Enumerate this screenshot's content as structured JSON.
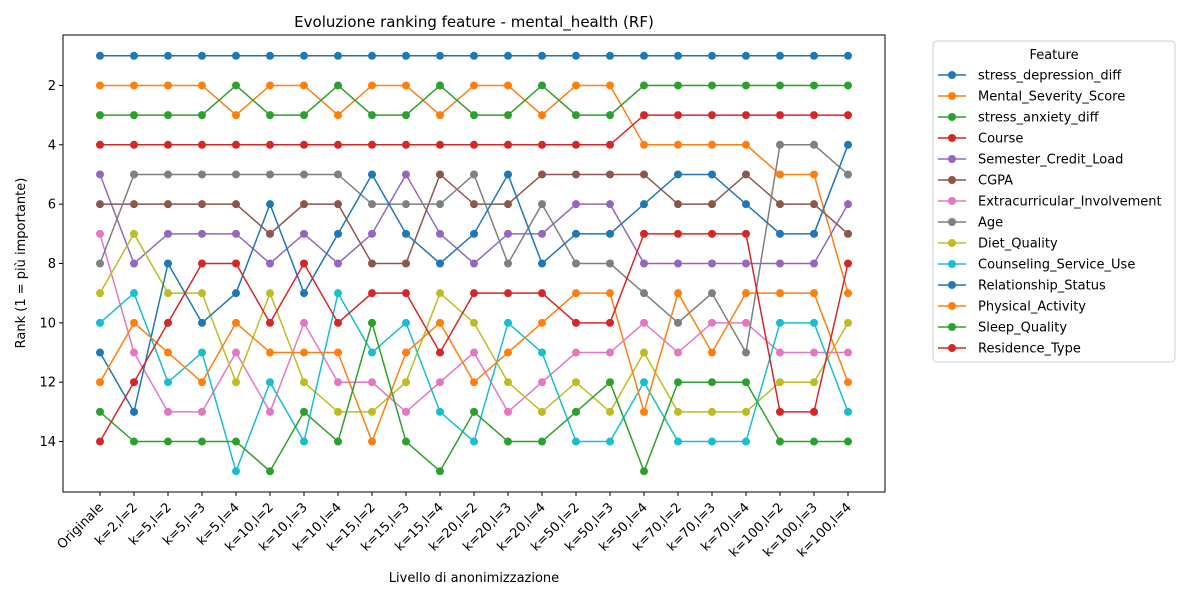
{
  "chart_data": {
    "type": "line",
    "title": "Evoluzione ranking feature - mental_health (RF)",
    "xlabel": "Livello di anonimizzazione",
    "ylabel": "Rank (1 = più importante)",
    "ylim": [
      15.7,
      0.3
    ],
    "y_inverted": true,
    "y_ticks": [
      2,
      4,
      6,
      8,
      10,
      12,
      14
    ],
    "grid": false,
    "legend_title": "Feature",
    "legend_position": "outside-right",
    "categories": [
      "Originale",
      "k=2,l=2",
      "k=5,l=2",
      "k=5,l=3",
      "k=5,l=4",
      "k=10,l=2",
      "k=10,l=3",
      "k=10,l=4",
      "k=15,l=2",
      "k=15,l=3",
      "k=15,l=4",
      "k=20,l=2",
      "k=20,l=3",
      "k=20,l=4",
      "k=50,l=2",
      "k=50,l=3",
      "k=50,l=4",
      "k=70,l=2",
      "k=70,l=3",
      "k=70,l=4",
      "k=100,l=2",
      "k=100,l=3",
      "k=100,l=4"
    ],
    "series": [
      {
        "name": "stress_depression_diff",
        "color": "#1f77b4",
        "values": [
          1,
          1,
          1,
          1,
          1,
          1,
          1,
          1,
          1,
          1,
          1,
          1,
          1,
          1,
          1,
          1,
          1,
          1,
          1,
          1,
          1,
          1,
          1
        ]
      },
      {
        "name": "Mental_Severity_Score",
        "color": "#ff7f0e",
        "values": [
          2,
          2,
          2,
          2,
          3,
          2,
          2,
          3,
          2,
          2,
          3,
          2,
          2,
          3,
          2,
          2,
          4,
          4,
          4,
          4,
          5,
          5,
          9
        ]
      },
      {
        "name": "stress_anxiety_diff",
        "color": "#2ca02c",
        "values": [
          3,
          3,
          3,
          3,
          2,
          3,
          3,
          2,
          3,
          3,
          2,
          3,
          3,
          2,
          3,
          3,
          2,
          2,
          2,
          2,
          2,
          2,
          2
        ]
      },
      {
        "name": "Course",
        "color": "#d62728",
        "values": [
          4,
          4,
          4,
          4,
          4,
          4,
          4,
          4,
          4,
          4,
          4,
          4,
          4,
          4,
          4,
          4,
          3,
          3,
          3,
          3,
          3,
          3,
          3
        ]
      },
      {
        "name": "Semester_Credit_Load",
        "color": "#9467bd",
        "values": [
          5,
          8,
          7,
          7,
          7,
          8,
          7,
          8,
          7,
          5,
          7,
          8,
          7,
          7,
          6,
          6,
          8,
          8,
          8,
          8,
          8,
          8,
          6
        ]
      },
      {
        "name": "CGPA",
        "color": "#8c564b",
        "values": [
          6,
          6,
          6,
          6,
          6,
          7,
          6,
          6,
          8,
          8,
          5,
          6,
          6,
          5,
          5,
          5,
          5,
          6,
          6,
          5,
          6,
          6,
          7
        ]
      },
      {
        "name": "Extracurricular_Involvement",
        "color": "#e377c2",
        "values": [
          7,
          11,
          13,
          13,
          11,
          13,
          10,
          12,
          12,
          13,
          12,
          11,
          13,
          12,
          11,
          11,
          10,
          11,
          10,
          10,
          11,
          11,
          11
        ]
      },
      {
        "name": "Age",
        "color": "#7f7f7f",
        "values": [
          8,
          5,
          5,
          5,
          5,
          5,
          5,
          5,
          6,
          6,
          6,
          5,
          8,
          6,
          8,
          8,
          9,
          10,
          9,
          11,
          4,
          4,
          5
        ]
      },
      {
        "name": "Diet_Quality",
        "color": "#bcbd22",
        "values": [
          9,
          7,
          9,
          9,
          12,
          9,
          12,
          13,
          13,
          12,
          9,
          10,
          12,
          13,
          12,
          13,
          11,
          13,
          13,
          13,
          12,
          12,
          10
        ]
      },
      {
        "name": "Counseling_Service_Use",
        "color": "#17becf",
        "values": [
          10,
          9,
          12,
          11,
          15,
          12,
          14,
          9,
          11,
          10,
          13,
          14,
          10,
          11,
          14,
          14,
          12,
          14,
          14,
          14,
          10,
          10,
          13
        ]
      },
      {
        "name": "Relationship_Status",
        "color": "#1f77b4",
        "values": [
          11,
          13,
          8,
          10,
          9,
          6,
          9,
          7,
          5,
          7,
          8,
          7,
          5,
          8,
          7,
          7,
          6,
          5,
          5,
          6,
          7,
          7,
          4
        ]
      },
      {
        "name": "Physical_Activity",
        "color": "#ff7f0e",
        "values": [
          12,
          10,
          11,
          12,
          10,
          11,
          11,
          11,
          14,
          11,
          10,
          12,
          11,
          10,
          9,
          9,
          13,
          9,
          11,
          9,
          9,
          9,
          12
        ]
      },
      {
        "name": "Sleep_Quality",
        "color": "#2ca02c",
        "values": [
          13,
          14,
          14,
          14,
          14,
          15,
          13,
          14,
          10,
          14,
          15,
          13,
          14,
          14,
          13,
          12,
          15,
          12,
          12,
          12,
          14,
          14,
          14
        ]
      },
      {
        "name": "Residence_Type",
        "color": "#d62728",
        "values": [
          14,
          12,
          10,
          8,
          8,
          10,
          8,
          10,
          9,
          9,
          11,
          9,
          9,
          9,
          10,
          10,
          7,
          7,
          7,
          7,
          13,
          13,
          8
        ]
      }
    ]
  }
}
